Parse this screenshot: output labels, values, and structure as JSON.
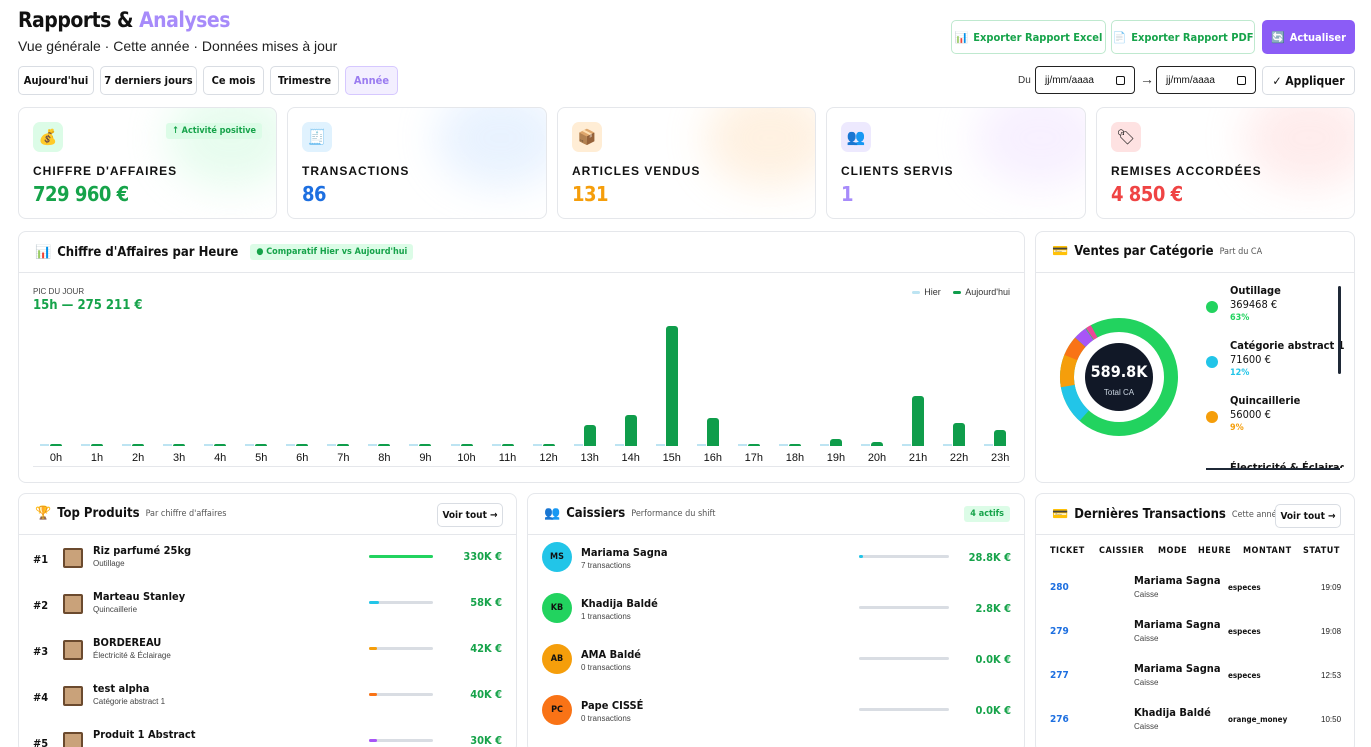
{
  "header": {
    "title_main": "Rapports & ",
    "title_accent": "Analyses",
    "subtitle": "Vue générale · Cette année · Données mises à jour"
  },
  "actions": {
    "export_excel": "Exporter Rapport Excel",
    "export_pdf": "Exporter Rapport PDF",
    "refresh": "Actualiser"
  },
  "filters": [
    "Aujourd'hui",
    "7 derniers jours",
    "Ce mois",
    "Trimestre",
    "Année"
  ],
  "date_range": {
    "from_label": "Du",
    "from_placeholder": "jj/mm/aaaa",
    "arrow": "→",
    "to_placeholder": "jj/mm/aaaa",
    "apply": "✓ Appliquer"
  },
  "kpis": [
    {
      "icon": "money-bag-icon",
      "glyph": "💰",
      "label": "CHIFFRE D'AFFAIRES",
      "value": "729 960 €",
      "color": "#16a34a",
      "badge": "↑ Activité positive"
    },
    {
      "icon": "receipt-icon",
      "glyph": "🧾",
      "label": "TRANSACTIONS",
      "value": "86",
      "color": "#1d6fe0"
    },
    {
      "icon": "package-icon",
      "glyph": "📦",
      "label": "ARTICLES VENDUS",
      "value": "131",
      "color": "#f59e0b"
    },
    {
      "icon": "users-icon",
      "glyph": "👥",
      "label": "CLIENTS SERVIS",
      "value": "1",
      "color": "#a78bfa"
    },
    {
      "icon": "tag-icon",
      "glyph": "🏷",
      "label": "REMISES ACCORDÉES",
      "value": "4 850 €",
      "color": "#ef4444"
    }
  ],
  "hourly": {
    "title": "Chiffre d'Affaires par Heure",
    "badge": "● Comparatif Hier vs Aujourd'hui",
    "peak_label": "PIC DU JOUR",
    "peak_value": "15h — 275 211 €",
    "legend": [
      "Hier",
      "Aujourd'hui"
    ]
  },
  "chart_data": {
    "type": "bar",
    "categories": [
      "0h",
      "1h",
      "2h",
      "3h",
      "4h",
      "5h",
      "6h",
      "7h",
      "8h",
      "9h",
      "10h",
      "11h",
      "12h",
      "13h",
      "14h",
      "15h",
      "16h",
      "17h",
      "18h",
      "19h",
      "20h",
      "21h",
      "22h",
      "23h"
    ],
    "series": [
      {
        "name": "Hier",
        "values": [
          0,
          0,
          0,
          0,
          0,
          0,
          0,
          0,
          0,
          0,
          0,
          0,
          0,
          0,
          0,
          0,
          0,
          0,
          0,
          0,
          0,
          0,
          0,
          0
        ]
      },
      {
        "name": "Aujourd'hui",
        "values": [
          2000,
          0,
          0,
          0,
          0,
          0,
          0,
          0,
          0,
          0,
          0,
          0,
          0,
          48000,
          70000,
          275211,
          65000,
          0,
          0,
          15000,
          10000,
          115000,
          52000,
          37000
        ]
      }
    ]
  },
  "categories_panel": {
    "title": "Ventes par Catégorie",
    "sub": "Part du CA",
    "total": "589.8K",
    "total_label": "Total CA",
    "items": [
      {
        "name": "Outillage",
        "amount": "369468 €",
        "pct": "63%",
        "color": "#22d35f"
      },
      {
        "name": "Catégorie abstract 1",
        "amount": "71600 €",
        "pct": "12%",
        "color": "#22c5e8"
      },
      {
        "name": "Quincaillerie",
        "amount": "56000 €",
        "pct": "9%",
        "color": "#f59e0b"
      },
      {
        "name": "Électricité & Éclairage",
        "amount": "",
        "pct": "",
        "color": "#111"
      }
    ]
  },
  "top_products": {
    "title": "Top Produits",
    "sub": "Par chiffre d'affaires",
    "btn": "Voir tout →",
    "rows": [
      {
        "rank": "#1",
        "name": "Riz parfumé 25kg",
        "cat": "Outillage",
        "value": "330K €",
        "fill": 1.0,
        "color": "#22d35f"
      },
      {
        "rank": "#2",
        "name": "Marteau Stanley",
        "cat": "Quincaillerie",
        "value": "58K €",
        "fill": 0.16,
        "color": "#22c5e8"
      },
      {
        "rank": "#3",
        "name": "BORDEREAU",
        "cat": "Électricité & Éclairage",
        "value": "42K €",
        "fill": 0.12,
        "color": "#f59e0b"
      },
      {
        "rank": "#4",
        "name": "test alpha",
        "cat": "Catégorie abstract 1",
        "value": "40K €",
        "fill": 0.11,
        "color": "#f97316"
      },
      {
        "rank": "#5",
        "name": "Produit 1 Abstract",
        "cat": "",
        "value": "30K €",
        "fill": 0.09,
        "color": "#a855f7"
      }
    ]
  },
  "cashiers": {
    "title": "Caissiers",
    "sub": "Performance du shift",
    "badge": "4 actifs",
    "rows": [
      {
        "initials": "MS",
        "name": "Mariama Sagna",
        "tx": "7 transactions",
        "value": "28.8K €",
        "fill": 0.05,
        "color": "#22c5e8"
      },
      {
        "initials": "KB",
        "name": "Khadija Baldé",
        "tx": "1 transactions",
        "value": "2.8K €",
        "fill": 0,
        "color": "#22d35f"
      },
      {
        "initials": "AB",
        "name": "AMA Baldé",
        "tx": "0 transactions",
        "value": "0.0K €",
        "fill": 0,
        "color": "#f59e0b"
      },
      {
        "initials": "PC",
        "name": "Pape CISSÉ",
        "tx": "0 transactions",
        "value": "0.0K €",
        "fill": 0,
        "color": "#f97316"
      }
    ]
  },
  "transactions": {
    "title": "Dernières Transactions",
    "sub": "Cette année",
    "btn": "Voir tout →",
    "columns": [
      "TICKET",
      "CAISSIER",
      "MODE",
      "HEURE",
      "MONTANT",
      "STATUT"
    ],
    "rows": [
      {
        "ticket": "280",
        "name": "Mariama Sagna",
        "role": "Caisse",
        "mode": "especes",
        "time": "19:09"
      },
      {
        "ticket": "279",
        "name": "Mariama Sagna",
        "role": "Caisse",
        "mode": "especes",
        "time": "19:08"
      },
      {
        "ticket": "277",
        "name": "Mariama Sagna",
        "role": "Caisse",
        "mode": "especes",
        "time": "12:53"
      },
      {
        "ticket": "276",
        "name": "Khadija Baldé",
        "role": "Caisse",
        "mode": "orange_money",
        "time": "10:50"
      }
    ]
  }
}
